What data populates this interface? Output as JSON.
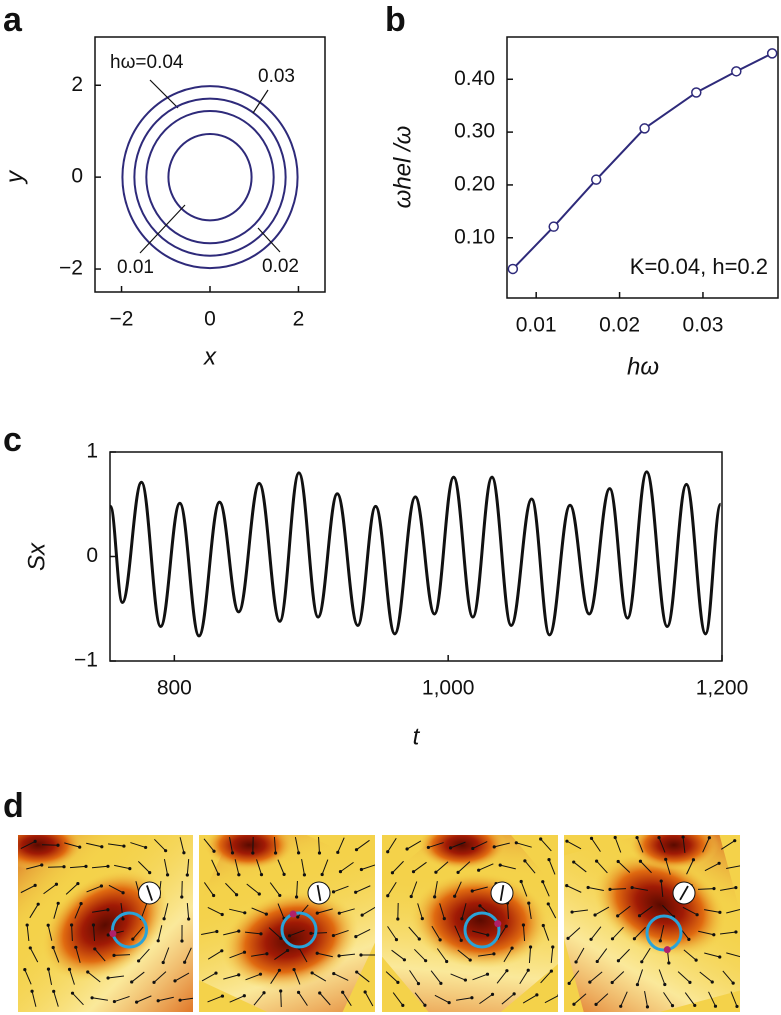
{
  "chart_data": [
    {
      "type": "circles",
      "label": "a",
      "xlabel": "x",
      "ylabel": "y",
      "categories": [
        "hω=0.04",
        "0.03",
        "0.02",
        "0.01"
      ],
      "values": [
        1.98,
        1.71,
        1.44,
        0.94
      ],
      "color": "#2e2a7a",
      "xlim": [
        -2.6,
        2.6
      ],
      "ylim": [
        -2.5,
        3.05
      ],
      "xticks": [
        {
          "value": -2,
          "label": "−2"
        },
        0,
        2
      ],
      "yticks": [
        {
          "value": -2,
          "label": "−2"
        },
        0,
        2
      ]
    },
    {
      "type": "line",
      "label": "b",
      "xlabel": "hω",
      "ylabel": "ωhel /ω",
      "annotation": "K=0.04, h=0.2",
      "x": [
        0.0072,
        0.0121,
        0.0172,
        0.023,
        0.0292,
        0.034,
        0.0383
      ],
      "values": [
        0.041,
        0.121,
        0.21,
        0.307,
        0.375,
        0.415,
        0.449
      ],
      "color": "#2e2a7a",
      "markers": true,
      "xlim": [
        0.0065,
        0.039
      ],
      "ylim": [
        -0.014,
        0.48
      ],
      "xticks": [
        0.01,
        0.02,
        0.03
      ],
      "yticks": [
        {
          "value": 0.1,
          "label": "0.10"
        },
        {
          "value": 0.2,
          "label": "0.20"
        },
        {
          "value": 0.3,
          "label": "0.30"
        },
        {
          "value": 0.4,
          "label": "0.40"
        }
      ]
    },
    {
      "type": "line",
      "label": "c",
      "xlabel": "t",
      "ylabel": "Sx",
      "smooth": true,
      "x": [
        753.3,
        762,
        776,
        790,
        804,
        818,
        833,
        847,
        862,
        877,
        891,
        905,
        919,
        934,
        947,
        961,
        976,
        990,
        1004,
        1018,
        1032,
        1046,
        1061,
        1074,
        1089,
        1103,
        1118,
        1131,
        1145,
        1160,
        1174,
        1188,
        1199
      ],
      "values": [
        0.48,
        -0.44,
        0.71,
        -0.67,
        0.51,
        -0.76,
        0.52,
        -0.53,
        0.7,
        -0.62,
        0.8,
        -0.58,
        0.6,
        -0.66,
        0.48,
        -0.74,
        0.57,
        -0.55,
        0.76,
        -0.58,
        0.76,
        -0.66,
        0.55,
        -0.75,
        0.49,
        -0.55,
        0.65,
        -0.59,
        0.81,
        -0.67,
        0.69,
        -0.74,
        0.5
      ],
      "color": "#111111",
      "xlim": [
        753,
        1200
      ],
      "ylim": [
        -1,
        1
      ],
      "xticks": [
        800,
        {
          "value": 1000,
          "label": "1,000"
        },
        {
          "value": 1200,
          "label": "1,200"
        }
      ],
      "yticks": [
        {
          "value": -1,
          "label": "−1"
        },
        0,
        1
      ]
    },
    {
      "type": "image",
      "label": "d"
    }
  ]
}
